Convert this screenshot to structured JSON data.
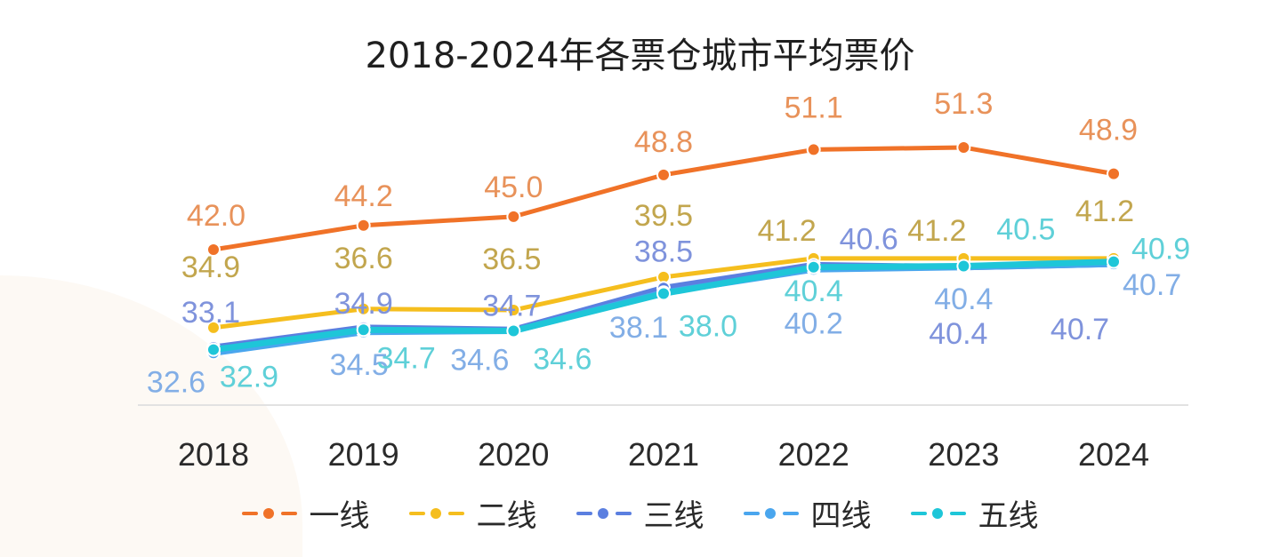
{
  "chart_data": {
    "type": "line",
    "title": "2018-2024年各票仓城市平均票价",
    "xlabel": "",
    "ylabel": "",
    "categories": [
      "2018",
      "2019",
      "2020",
      "2021",
      "2022",
      "2023",
      "2024"
    ],
    "ylim": [
      27,
      56
    ],
    "grid": false,
    "legend_position": "bottom",
    "series": [
      {
        "name": "一线",
        "color": "#f07228",
        "label_color": "#e8925a",
        "values": [
          42.0,
          44.2,
          45.0,
          48.8,
          51.1,
          51.3,
          48.9
        ],
        "labels": [
          "42.0",
          "44.2",
          "45.0",
          "48.8",
          "51.1",
          "51.3",
          "48.9"
        ]
      },
      {
        "name": "二线",
        "color": "#f5be1e",
        "label_color": "#c2a64e",
        "values": [
          34.9,
          36.6,
          36.5,
          39.5,
          41.2,
          41.2,
          41.2
        ],
        "labels": [
          "34.9",
          "36.6",
          "36.5",
          "39.5",
          "41.2",
          "41.2",
          "41.2"
        ]
      },
      {
        "name": "三线",
        "color": "#5b7fe0",
        "label_color": "#7f93dc",
        "values": [
          33.1,
          34.9,
          34.7,
          38.5,
          40.6,
          40.4,
          40.7
        ],
        "labels": [
          "33.1",
          "34.9",
          "34.7",
          "38.5",
          "40.6",
          "40.4",
          "40.7"
        ]
      },
      {
        "name": "四线",
        "color": "#4aa6ee",
        "label_color": "#82aee6",
        "values": [
          32.6,
          34.5,
          34.6,
          38.1,
          40.2,
          40.4,
          40.7
        ],
        "labels": [
          "32.6",
          "34.5",
          "34.6",
          "38.1",
          "40.2",
          "40.4",
          "40.7"
        ]
      },
      {
        "name": "五线",
        "color": "#1ec6d8",
        "label_color": "#5fd0d8",
        "values": [
          32.9,
          34.7,
          34.6,
          38.0,
          40.4,
          40.5,
          40.9
        ],
        "labels": [
          "32.9",
          "34.7",
          "34.6",
          "38.0",
          "40.4",
          "40.5",
          "40.9"
        ]
      }
    ]
  }
}
